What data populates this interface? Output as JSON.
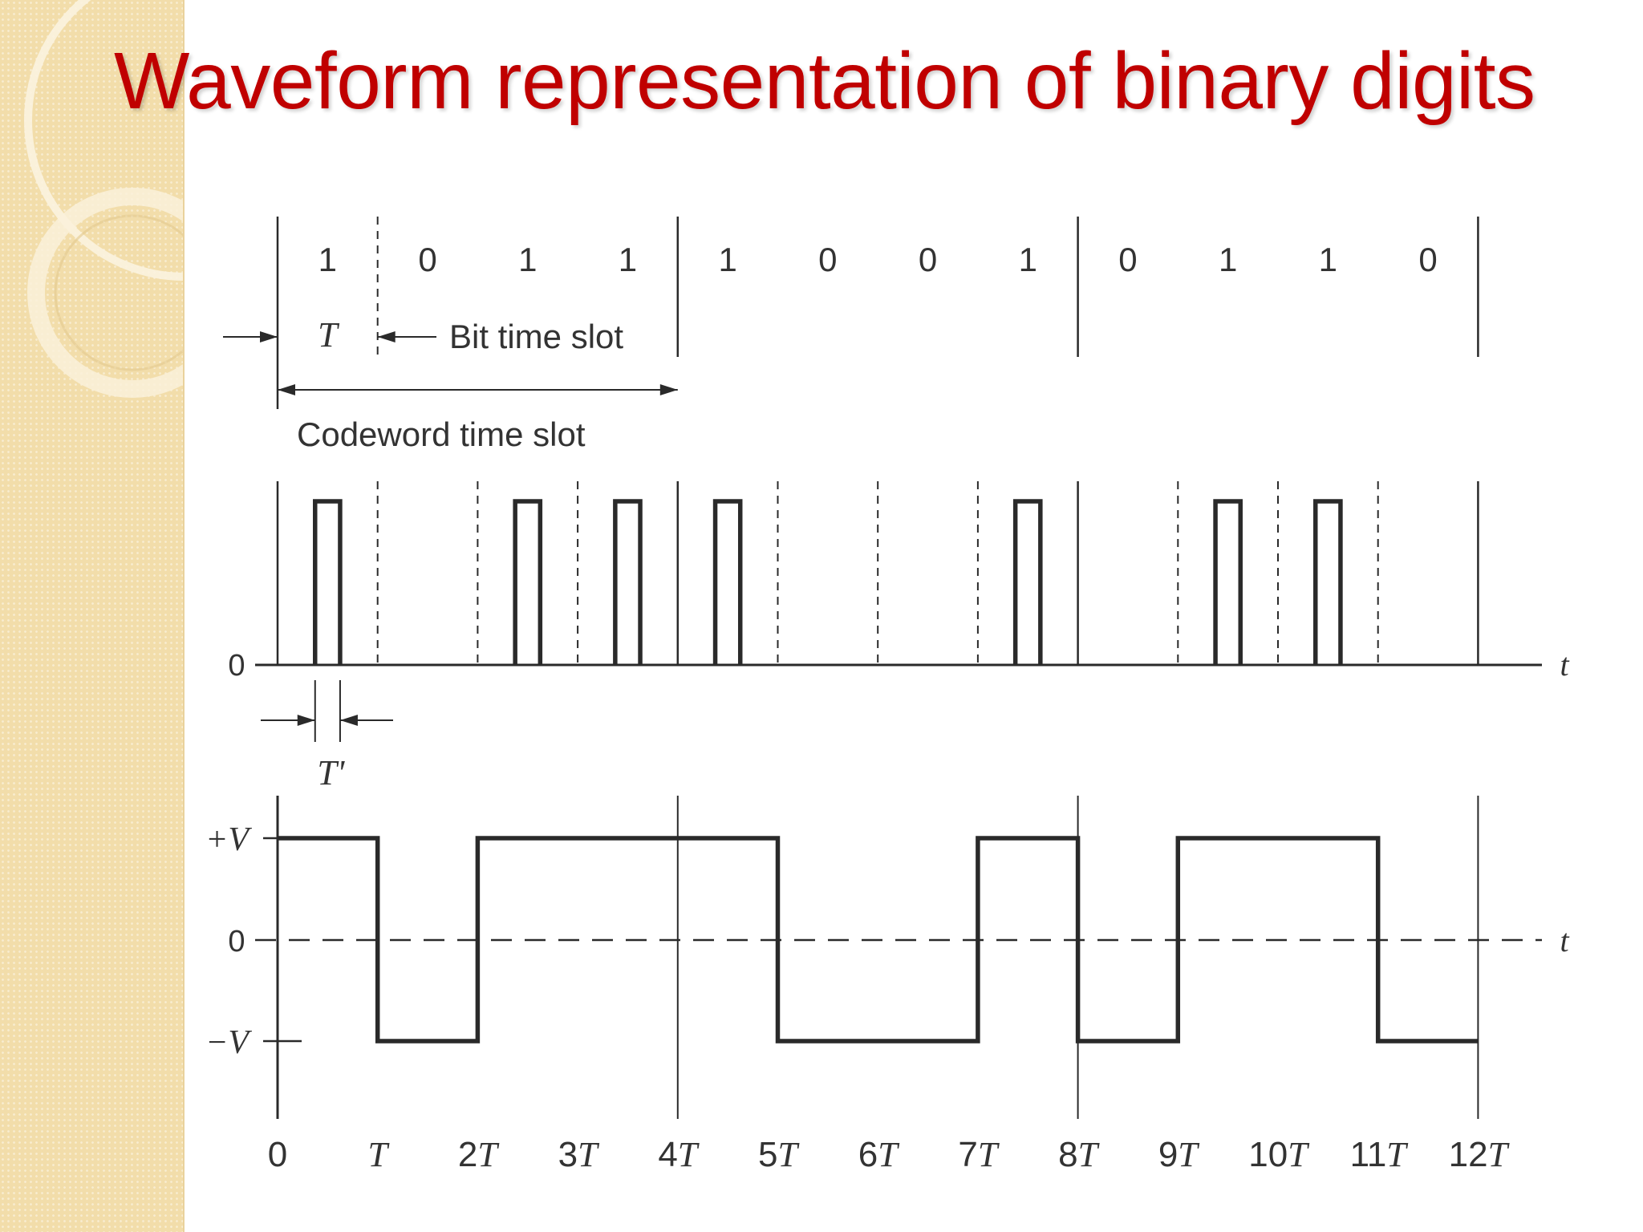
{
  "slide": {
    "title": "Waveform representation of binary digits"
  },
  "diagram": {
    "bits": [
      "1",
      "0",
      "1",
      "1",
      "1",
      "0",
      "0",
      "1",
      "0",
      "1",
      "1",
      "0"
    ],
    "codeword_length_bits": 4,
    "bit_period_label": "T",
    "bit_slot_label": "Bit time slot",
    "codeword_slot_label": "Codeword time slot",
    "pulse_width_label": "T'",
    "zero_label": "0",
    "time_axis_label": "t",
    "plus_v_label": "+V",
    "minus_v_label": "−V",
    "time_ticks": [
      {
        "num": "",
        "sym": "0"
      },
      {
        "num": "",
        "sym": "T"
      },
      {
        "num": "2",
        "sym": "T"
      },
      {
        "num": "3",
        "sym": "T"
      },
      {
        "num": "4",
        "sym": "T"
      },
      {
        "num": "5",
        "sym": "T"
      },
      {
        "num": "6",
        "sym": "T"
      },
      {
        "num": "7",
        "sym": "T"
      },
      {
        "num": "8",
        "sym": "T"
      },
      {
        "num": "9",
        "sym": "T"
      },
      {
        "num": "10",
        "sym": "T"
      },
      {
        "num": "11",
        "sym": "T"
      },
      {
        "num": "12",
        "sym": "T"
      }
    ],
    "rz_pulse_width_fraction": 0.25,
    "colors": {
      "line": "#2a2a2a",
      "text": "#333333"
    }
  }
}
